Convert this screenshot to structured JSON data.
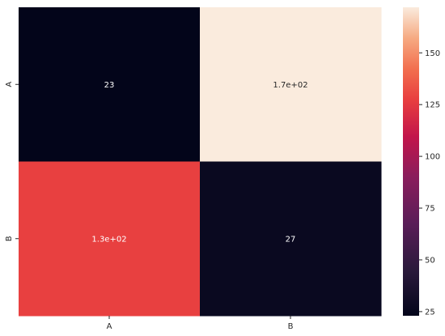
{
  "chart_data": {
    "type": "heatmap",
    "title": "",
    "xlabel": "",
    "ylabel": "",
    "x_categories": [
      "A",
      "B"
    ],
    "y_categories": [
      "A",
      "B"
    ],
    "values": [
      [
        23,
        172
      ],
      [
        128,
        27
      ]
    ],
    "annotations": [
      [
        "23",
        "1.7e+02"
      ],
      [
        "1.3e+02",
        "27"
      ]
    ],
    "colormap": "rocket",
    "color_range": [
      23,
      172
    ],
    "colorbar_ticks": [
      {
        "value": 25,
        "label": "25"
      },
      {
        "value": 50,
        "label": "50"
      },
      {
        "value": 75,
        "label": "75"
      },
      {
        "value": 100,
        "label": "100"
      },
      {
        "value": 125,
        "label": "125"
      },
      {
        "value": 150,
        "label": "150"
      }
    ],
    "colorbar_placement": "right"
  }
}
